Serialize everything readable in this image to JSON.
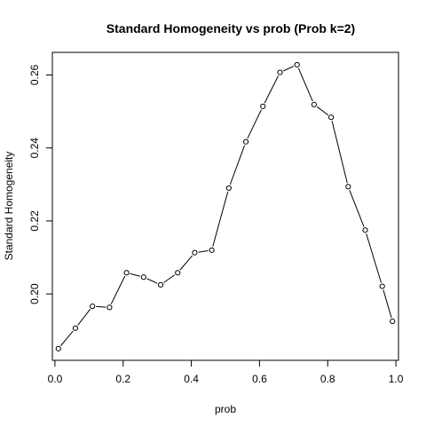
{
  "chart_data": {
    "type": "line",
    "title": "Standard Homogeneity vs prob (Prob k=2)",
    "xlabel": "prob",
    "ylabel": "Standard Homogeneity",
    "xlim": [
      -0.0076,
      1.0076
    ],
    "ylim": [
      0.1818,
      0.2662
    ],
    "x_ticks": [
      0.0,
      0.2,
      0.4,
      0.6,
      0.8,
      1.0
    ],
    "x_tick_labels": [
      "0.0",
      "0.2",
      "0.4",
      "0.6",
      "0.8",
      "1.0"
    ],
    "y_ticks": [
      0.2,
      0.22,
      0.24,
      0.26
    ],
    "y_tick_labels": [
      "0.20",
      "0.22",
      "0.24",
      "0.26"
    ],
    "grid": false,
    "legend": "none",
    "line_color": "#000000",
    "marker": "open-circle",
    "series": [
      {
        "x": [
          0.01,
          0.06,
          0.11,
          0.16,
          0.21,
          0.26,
          0.31,
          0.36,
          0.41,
          0.46,
          0.51,
          0.56,
          0.61,
          0.66,
          0.71,
          0.76,
          0.81,
          0.86,
          0.91,
          0.96,
          0.99
        ],
        "values": [
          0.185,
          0.1906,
          0.1966,
          0.1963,
          0.2058,
          0.2046,
          0.2025,
          0.2058,
          0.2113,
          0.212,
          0.229,
          0.2417,
          0.2514,
          0.2607,
          0.2628,
          0.2519,
          0.2484,
          0.2294,
          0.2175,
          0.2021,
          0.1925
        ]
      }
    ]
  }
}
